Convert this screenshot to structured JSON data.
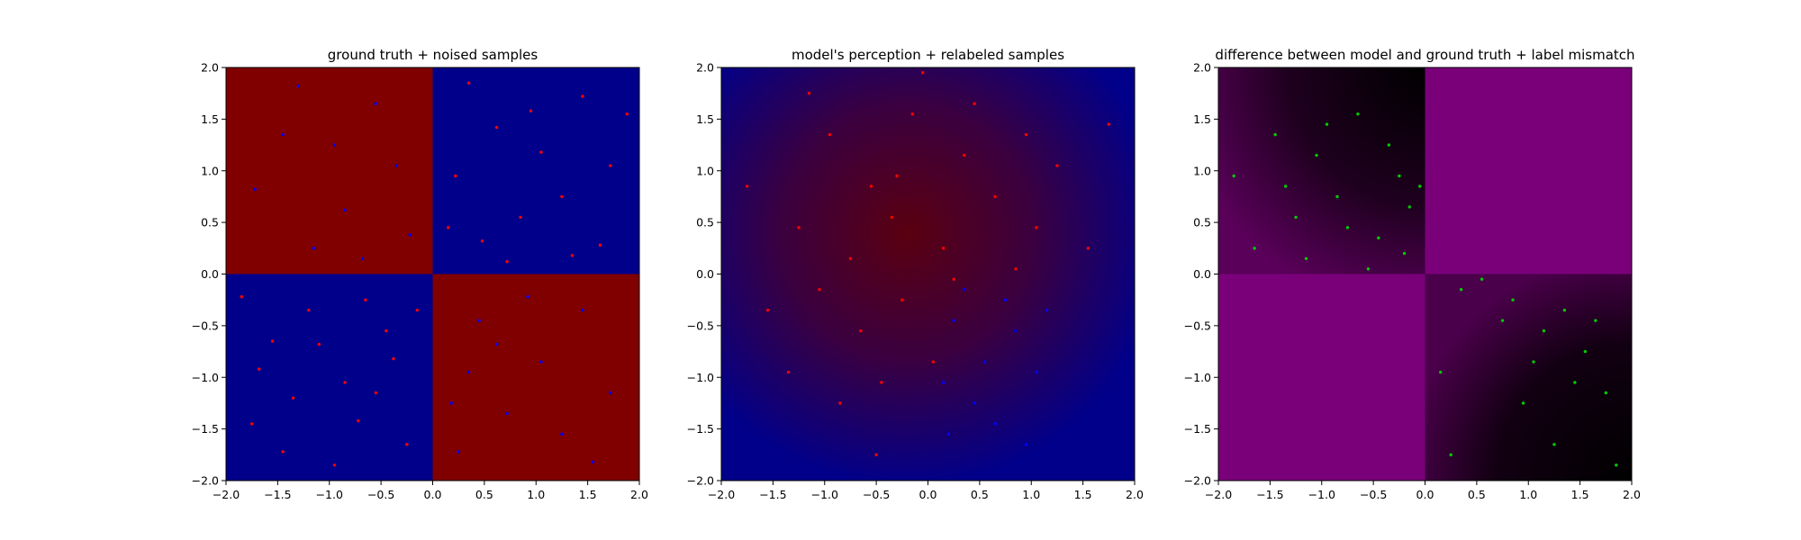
{
  "chart_data": [
    {
      "type": "scatter",
      "title": "ground truth + noised samples",
      "xlim": [
        -2.0,
        2.0
      ],
      "ylim": [
        -2.0,
        2.0
      ],
      "x_ticks": [
        -2.0,
        -1.5,
        -1.0,
        -0.5,
        0.0,
        0.5,
        1.0,
        1.5,
        2.0
      ],
      "y_ticks": [
        -2.0,
        -1.5,
        -1.0,
        -0.5,
        0.0,
        0.5,
        1.0,
        1.5,
        2.0
      ],
      "x_tick_labels": [
        "−2.0",
        "−1.5",
        "−1.0",
        "−0.5",
        "0.0",
        "0.5",
        "1.0",
        "1.5",
        "2.0"
      ],
      "y_tick_labels": [
        "−2.0",
        "−1.5",
        "−1.0",
        "−0.5",
        "0.0",
        "0.5",
        "1.0",
        "1.5",
        "2.0"
      ],
      "grid": false,
      "background": "quadrants",
      "quadrant_colors": {
        "top_left": "#800000",
        "top_right": "#00008b",
        "bottom_left": "#00008b",
        "bottom_right": "#800000"
      },
      "series": [
        {
          "color": "#ff0000",
          "values": [
            [
              0.35,
              1.85
            ],
            [
              0.62,
              1.42
            ],
            [
              1.05,
              1.18
            ],
            [
              1.45,
              1.72
            ],
            [
              0.22,
              0.95
            ],
            [
              0.85,
              0.55
            ],
            [
              1.25,
              0.75
            ],
            [
              1.72,
              1.05
            ],
            [
              0.48,
              0.32
            ],
            [
              1.62,
              0.28
            ],
            [
              0.95,
              1.58
            ],
            [
              0.15,
              0.45
            ],
            [
              1.88,
              1.55
            ],
            [
              0.72,
              0.12
            ],
            [
              1.35,
              0.18
            ],
            [
              -1.55,
              -0.65
            ],
            [
              -1.2,
              -0.35
            ],
            [
              -0.85,
              -1.05
            ],
            [
              -0.45,
              -0.55
            ],
            [
              -1.75,
              -1.45
            ],
            [
              -0.25,
              -1.65
            ],
            [
              -0.65,
              -0.25
            ],
            [
              -1.35,
              -1.2
            ],
            [
              -0.95,
              -1.85
            ],
            [
              -1.68,
              -0.92
            ],
            [
              -0.38,
              -0.82
            ],
            [
              -1.1,
              -0.68
            ],
            [
              -0.72,
              -1.42
            ],
            [
              -1.45,
              -1.72
            ],
            [
              -0.15,
              -0.35
            ],
            [
              -0.55,
              -1.15
            ],
            [
              -1.85,
              -0.22
            ]
          ]
        },
        {
          "color": "#0000ff",
          "values": [
            [
              -1.45,
              1.35
            ],
            [
              -0.85,
              0.62
            ],
            [
              -0.35,
              1.05
            ],
            [
              -1.15,
              0.25
            ],
            [
              -0.55,
              1.65
            ],
            [
              -1.72,
              0.82
            ],
            [
              -0.22,
              0.38
            ],
            [
              -0.95,
              1.25
            ],
            [
              -1.3,
              1.82
            ],
            [
              -0.68,
              0.15
            ],
            [
              0.45,
              -0.45
            ],
            [
              1.05,
              -0.85
            ],
            [
              0.72,
              -1.35
            ],
            [
              1.45,
              -0.35
            ],
            [
              0.25,
              -1.72
            ],
            [
              1.72,
              -1.15
            ],
            [
              0.92,
              -0.22
            ],
            [
              0.35,
              -0.95
            ],
            [
              1.25,
              -1.55
            ],
            [
              0.62,
              -0.68
            ],
            [
              1.55,
              -1.82
            ],
            [
              0.18,
              -1.25
            ]
          ]
        }
      ]
    },
    {
      "type": "scatter",
      "title": "model's perception + relabeled samples",
      "xlim": [
        -2.0,
        2.0
      ],
      "ylim": [
        -2.0,
        2.0
      ],
      "x_ticks": [
        -2.0,
        -1.5,
        -1.0,
        -0.5,
        0.0,
        0.5,
        1.0,
        1.5,
        2.0
      ],
      "y_ticks": [
        -2.0,
        -1.5,
        -1.0,
        -0.5,
        0.0,
        0.5,
        1.0,
        1.5,
        2.0
      ],
      "x_tick_labels": [
        "−2.0",
        "−1.5",
        "−1.0",
        "−0.5",
        "0.0",
        "0.5",
        "1.0",
        "1.5",
        "2.0"
      ],
      "y_tick_labels": [
        "−2.0",
        "−1.5",
        "−1.0",
        "−0.5",
        "0.0",
        "0.5",
        "1.0",
        "1.5",
        "2.0"
      ],
      "grid": false,
      "background": "gradient",
      "background_colors": {
        "outer": "#00008b",
        "center": "#5a0010"
      },
      "series": [
        {
          "color": "#ff0000",
          "values": [
            [
              -0.95,
              1.35
            ],
            [
              -0.55,
              0.85
            ],
            [
              -0.15,
              1.55
            ],
            [
              0.35,
              1.15
            ],
            [
              -1.25,
              0.45
            ],
            [
              -0.75,
              0.15
            ],
            [
              -0.35,
              0.55
            ],
            [
              0.15,
              0.25
            ],
            [
              0.65,
              0.75
            ],
            [
              1.05,
              0.45
            ],
            [
              -1.55,
              -0.35
            ],
            [
              -1.05,
              -0.15
            ],
            [
              -0.65,
              -0.55
            ],
            [
              -0.25,
              -0.25
            ],
            [
              0.25,
              -0.05
            ],
            [
              0.85,
              0.05
            ],
            [
              -1.35,
              -0.95
            ],
            [
              -0.85,
              -1.25
            ],
            [
              -0.45,
              -1.05
            ],
            [
              0.05,
              -0.85
            ],
            [
              1.25,
              1.05
            ],
            [
              -1.75,
              0.85
            ],
            [
              -0.05,
              1.95
            ],
            [
              1.55,
              0.25
            ],
            [
              0.45,
              1.65
            ],
            [
              -0.5,
              -1.75
            ],
            [
              0.95,
              1.35
            ],
            [
              -1.15,
              1.75
            ],
            [
              1.75,
              1.45
            ],
            [
              -0.3,
              0.95
            ]
          ]
        },
        {
          "color": "#0000ff",
          "values": [
            [
              0.25,
              -0.45
            ],
            [
              0.55,
              -0.85
            ],
            [
              0.45,
              -1.25
            ],
            [
              0.85,
              -0.55
            ],
            [
              0.15,
              -1.05
            ],
            [
              0.65,
              -1.45
            ],
            [
              1.05,
              -0.95
            ],
            [
              0.35,
              -0.15
            ],
            [
              0.75,
              -0.25
            ],
            [
              0.95,
              -1.65
            ],
            [
              0.2,
              -1.55
            ],
            [
              1.15,
              -0.35
            ]
          ]
        }
      ]
    },
    {
      "type": "scatter",
      "title": "difference between model and ground truth + label mismatch",
      "xlim": [
        -2.0,
        2.0
      ],
      "ylim": [
        -2.0,
        2.0
      ],
      "x_ticks": [
        -2.0,
        -1.5,
        -1.0,
        -0.5,
        0.0,
        0.5,
        1.0,
        1.5,
        2.0
      ],
      "y_ticks": [
        -2.0,
        -1.5,
        -1.0,
        -0.5,
        0.0,
        0.5,
        1.0,
        1.5,
        2.0
      ],
      "x_tick_labels": [
        "−2.0",
        "−1.5",
        "−1.0",
        "−0.5",
        "0.0",
        "0.5",
        "1.0",
        "1.5",
        "2.0"
      ],
      "y_tick_labels": [
        "−2.0",
        "−1.5",
        "−1.0",
        "−0.5",
        "0.0",
        "0.5",
        "1.0",
        "1.5",
        "2.0"
      ],
      "grid": false,
      "background": "quadrant-gradients",
      "background_colors": {
        "magenta": "#7a007a",
        "dark": "#000000"
      },
      "series": [
        {
          "color": "#00cc00",
          "values": [
            [
              -1.45,
              1.35
            ],
            [
              -1.05,
              1.15
            ],
            [
              -0.65,
              1.55
            ],
            [
              -0.25,
              0.95
            ],
            [
              -1.25,
              0.55
            ],
            [
              -0.85,
              0.75
            ],
            [
              -0.45,
              0.35
            ],
            [
              -0.15,
              0.65
            ],
            [
              -1.65,
              0.25
            ],
            [
              -1.15,
              0.15
            ],
            [
              -0.55,
              0.05
            ],
            [
              -0.05,
              0.85
            ],
            [
              -0.95,
              1.45
            ],
            [
              -0.35,
              1.25
            ],
            [
              -1.85,
              0.95
            ],
            [
              -0.75,
              0.45
            ],
            [
              -0.2,
              0.2
            ],
            [
              -1.35,
              0.85
            ],
            [
              0.35,
              -0.15
            ],
            [
              0.75,
              -0.45
            ],
            [
              1.05,
              -0.85
            ],
            [
              1.35,
              -0.35
            ],
            [
              0.95,
              -1.25
            ],
            [
              1.55,
              -0.75
            ],
            [
              1.25,
              -1.65
            ],
            [
              0.55,
              -0.05
            ],
            [
              1.75,
              -1.15
            ],
            [
              0.85,
              -0.25
            ],
            [
              1.45,
              -1.05
            ],
            [
              0.15,
              -0.95
            ],
            [
              1.15,
              -0.55
            ],
            [
              1.85,
              -1.85
            ],
            [
              0.25,
              -1.75
            ],
            [
              1.65,
              -0.45
            ]
          ]
        }
      ]
    }
  ]
}
